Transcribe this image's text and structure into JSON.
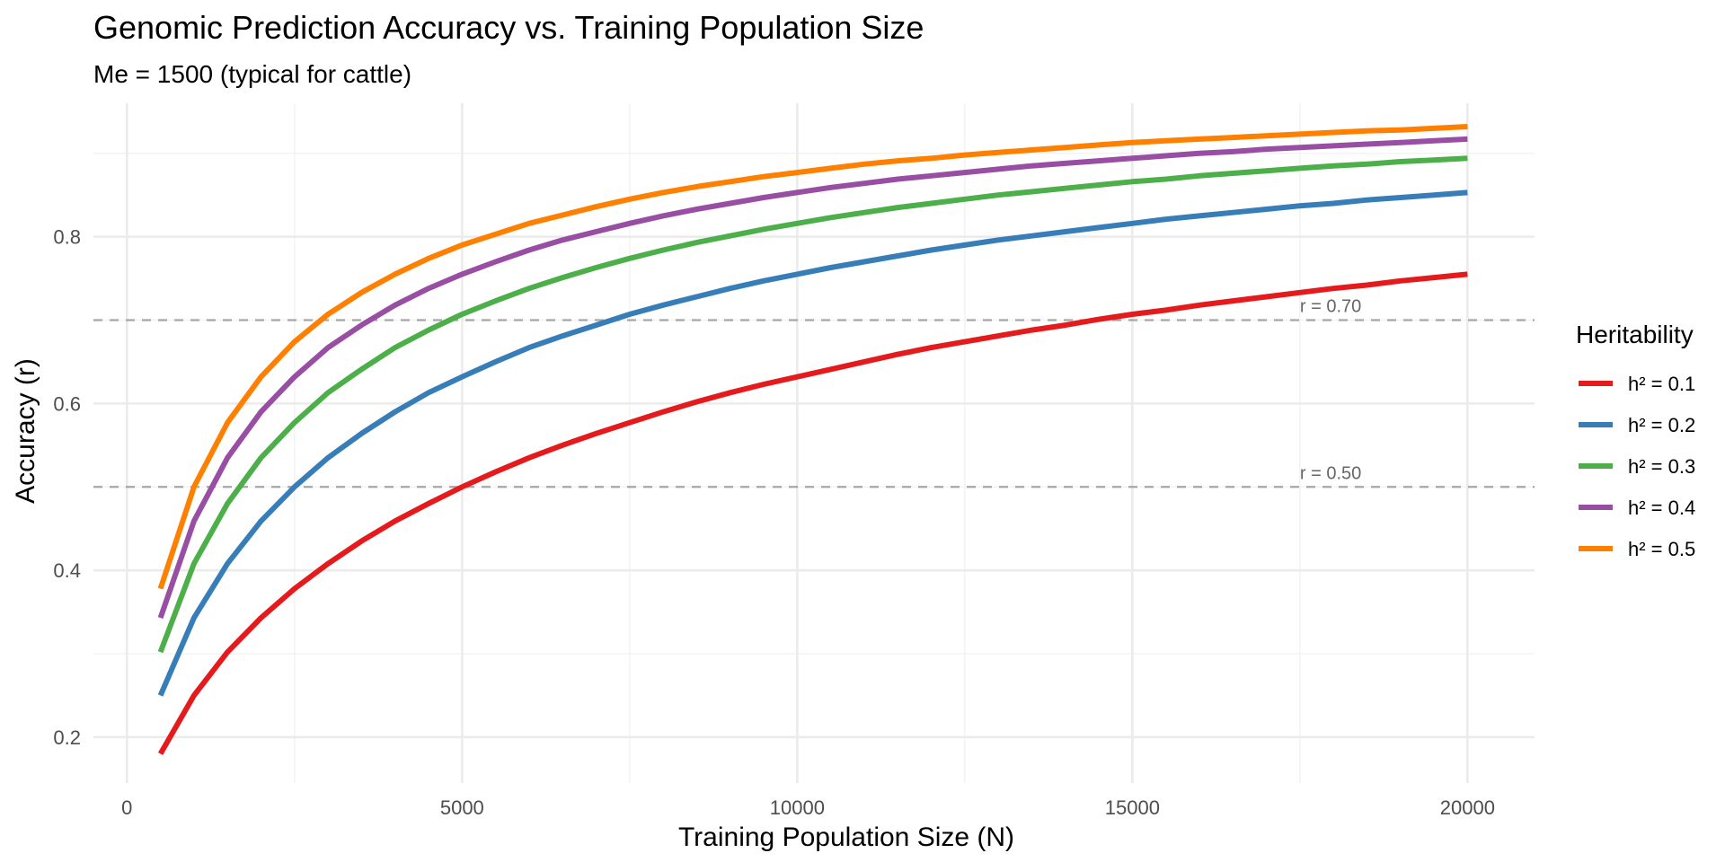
{
  "chart_data": {
    "type": "line",
    "title": "Genomic Prediction Accuracy vs. Training Population Size",
    "subtitle": "Me = 1500 (typical for cattle)",
    "xlabel": "Training Population Size (N)",
    "ylabel": "Accuracy (r)",
    "xlim": [
      -500,
      21000
    ],
    "ylim": [
      0.145,
      0.96
    ],
    "x_ticks": [
      0,
      5000,
      10000,
      15000,
      20000
    ],
    "x_tick_labels": [
      "0",
      "5000",
      "10000",
      "15000",
      "20000"
    ],
    "y_ticks": [
      0.2,
      0.4,
      0.6,
      0.8
    ],
    "y_tick_labels": [
      "0.2",
      "0.4",
      "0.6",
      "0.8"
    ],
    "grid": true,
    "legend": {
      "title": "Heritability",
      "position": "right"
    },
    "x": [
      500,
      1000,
      1500,
      2000,
      2500,
      3000,
      3500,
      4000,
      4500,
      5000,
      5500,
      6000,
      6500,
      7000,
      7500,
      8000,
      8500,
      9000,
      9500,
      10000,
      10500,
      11000,
      11500,
      12000,
      12500,
      13000,
      13500,
      14000,
      14500,
      15000,
      15500,
      16000,
      16500,
      17000,
      17500,
      18000,
      18500,
      19000,
      19500,
      20000
    ],
    "series": [
      {
        "name": "h² = 0.1",
        "color": "#E41A1C",
        "values": [
          0.18,
          0.25,
          0.302,
          0.343,
          0.378,
          0.408,
          0.435,
          0.459,
          0.48,
          0.5,
          0.518,
          0.535,
          0.55,
          0.564,
          0.577,
          0.59,
          0.602,
          0.613,
          0.623,
          0.632,
          0.641,
          0.65,
          0.659,
          0.667,
          0.674,
          0.681,
          0.688,
          0.694,
          0.701,
          0.707,
          0.712,
          0.718,
          0.723,
          0.728,
          0.733,
          0.738,
          0.742,
          0.747,
          0.751,
          0.755
        ]
      },
      {
        "name": "h² = 0.2",
        "color": "#377EB8",
        "values": [
          0.25,
          0.343,
          0.408,
          0.459,
          0.5,
          0.535,
          0.564,
          0.59,
          0.613,
          0.632,
          0.65,
          0.667,
          0.681,
          0.694,
          0.707,
          0.718,
          0.728,
          0.738,
          0.747,
          0.755,
          0.763,
          0.77,
          0.777,
          0.784,
          0.79,
          0.796,
          0.801,
          0.806,
          0.811,
          0.816,
          0.821,
          0.825,
          0.829,
          0.833,
          0.837,
          0.84,
          0.844,
          0.847,
          0.85,
          0.853
        ]
      },
      {
        "name": "h² = 0.3",
        "color": "#4DAF4A",
        "values": [
          0.302,
          0.408,
          0.48,
          0.535,
          0.577,
          0.613,
          0.641,
          0.667,
          0.688,
          0.707,
          0.723,
          0.738,
          0.751,
          0.763,
          0.774,
          0.784,
          0.793,
          0.801,
          0.809,
          0.816,
          0.823,
          0.829,
          0.835,
          0.84,
          0.845,
          0.85,
          0.854,
          0.858,
          0.862,
          0.866,
          0.869,
          0.873,
          0.876,
          0.879,
          0.882,
          0.885,
          0.887,
          0.89,
          0.892,
          0.894
        ]
      },
      {
        "name": "h² = 0.4",
        "color": "#984EA3",
        "values": [
          0.343,
          0.459,
          0.535,
          0.59,
          0.632,
          0.667,
          0.694,
          0.718,
          0.738,
          0.755,
          0.77,
          0.784,
          0.796,
          0.806,
          0.816,
          0.825,
          0.833,
          0.84,
          0.847,
          0.853,
          0.859,
          0.864,
          0.869,
          0.873,
          0.877,
          0.881,
          0.885,
          0.888,
          0.891,
          0.894,
          0.897,
          0.9,
          0.902,
          0.905,
          0.907,
          0.909,
          0.911,
          0.913,
          0.915,
          0.917
        ]
      },
      {
        "name": "h² = 0.5",
        "color": "#FF7F00",
        "values": [
          0.378,
          0.5,
          0.577,
          0.632,
          0.674,
          0.707,
          0.733,
          0.755,
          0.774,
          0.79,
          0.803,
          0.816,
          0.826,
          0.836,
          0.845,
          0.853,
          0.86,
          0.866,
          0.872,
          0.877,
          0.882,
          0.887,
          0.891,
          0.894,
          0.898,
          0.901,
          0.904,
          0.907,
          0.91,
          0.913,
          0.915,
          0.917,
          0.919,
          0.921,
          0.923,
          0.925,
          0.927,
          0.928,
          0.93,
          0.932
        ]
      }
    ],
    "reference_lines": [
      {
        "y": 0.7,
        "label": "r = 0.70",
        "label_x": 17500
      },
      {
        "y": 0.5,
        "label": "r = 0.50",
        "label_x": 17500
      }
    ]
  }
}
